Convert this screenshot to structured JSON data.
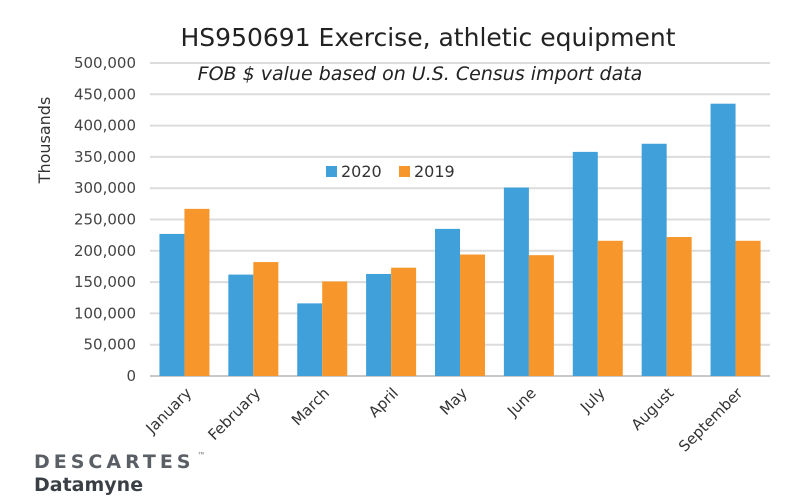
{
  "chart_data": {
    "type": "bar",
    "title": "HS950691 Exercise, athletic equipment",
    "subtitle": "FOB $ value based on U.S. Census import data",
    "xlabel": "",
    "ylabel": "Thousands",
    "ylim": [
      0,
      500000
    ],
    "yticks": [
      "0",
      "50,000",
      "100,000",
      "150,000",
      "200,000",
      "250,000",
      "300,000",
      "350,000",
      "400,000",
      "450,000",
      "500,000"
    ],
    "grid": true,
    "legend_position": "top-center",
    "categories": [
      "January",
      "February",
      "March",
      "April",
      "May",
      "June",
      "July",
      "August",
      "September"
    ],
    "series": [
      {
        "name": "2020",
        "color": "#3fa0da",
        "values": [
          227000,
          162000,
          116000,
          163000,
          235000,
          301000,
          358000,
          371000,
          435000
        ]
      },
      {
        "name": "2019",
        "color": "#f7962a",
        "values": [
          267000,
          182000,
          151000,
          173000,
          194000,
          193000,
          216000,
          222000,
          216000
        ]
      }
    ]
  },
  "branding": {
    "logo_line1": "DESCARTES",
    "logo_tm": "™",
    "logo_line2": "Datamyne"
  }
}
